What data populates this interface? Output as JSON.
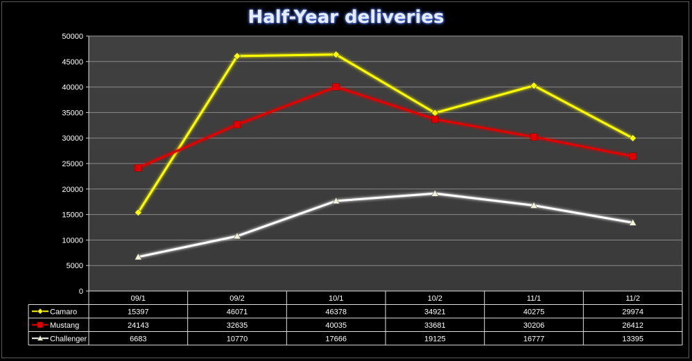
{
  "chart_data": {
    "type": "line",
    "title": "Half-Year deliveries",
    "categories": [
      "09/1",
      "09/2",
      "10/1",
      "10/2",
      "11/1",
      "11/2"
    ],
    "ylim": [
      0,
      50000
    ],
    "yticks": [
      0,
      5000,
      10000,
      15000,
      20000,
      25000,
      30000,
      35000,
      40000,
      45000,
      50000
    ],
    "grid": true,
    "legend": "data-table",
    "series": [
      {
        "name": "Camaro",
        "color": "#ffff00",
        "marker": "diamond",
        "values": [
          15397,
          46071,
          46378,
          34921,
          40275,
          29974
        ]
      },
      {
        "name": "Mustang",
        "color": "#e00000",
        "marker": "square",
        "values": [
          24143,
          32635,
          40035,
          33681,
          30206,
          26412
        ]
      },
      {
        "name": "Challenger",
        "color": "#ffffff",
        "marker": "triangle",
        "values": [
          6683,
          10770,
          17666,
          19125,
          16777,
          13395
        ]
      }
    ]
  }
}
